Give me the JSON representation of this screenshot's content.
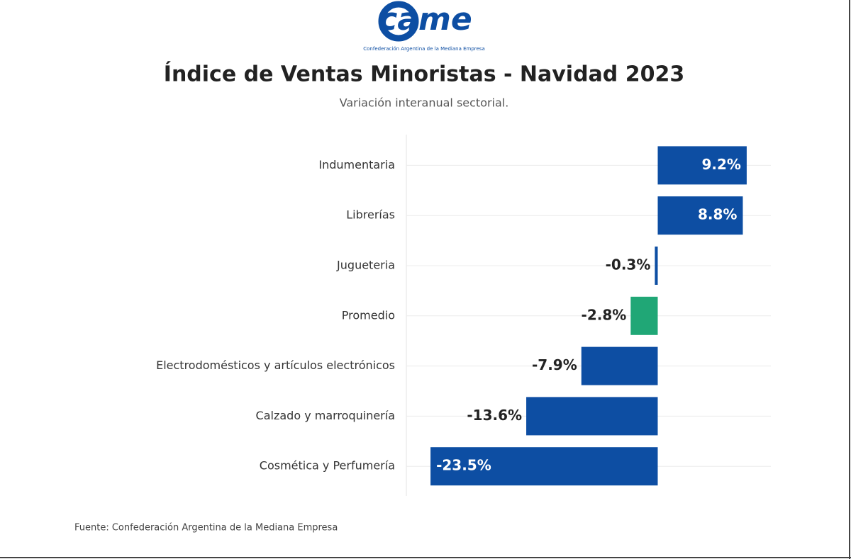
{
  "logo": {
    "text": "came",
    "caption": "Confederación Argentina de la Mediana Empresa"
  },
  "chart_data": {
    "type": "bar",
    "orientation": "horizontal",
    "title": "Índice de Ventas Minoristas - Navidad 2023",
    "subtitle": "Variación interanual sectorial.",
    "categories": [
      "Indumentaria",
      "Librerías",
      "Jugueteria",
      "Promedio",
      "Electrodomésticos y artículos electrónicos",
      "Calzado y marroquinería",
      "Cosmética y Perfumería"
    ],
    "values": [
      9.2,
      8.8,
      -0.3,
      -2.8,
      -7.9,
      -13.6,
      -23.5
    ],
    "value_labels": [
      "9.2%",
      "8.8%",
      "-0.3%",
      "-2.8%",
      "-7.9%",
      "-13.6%",
      "-23.5%"
    ],
    "colors": [
      "#0d4ea3",
      "#0d4ea3",
      "#0d4ea3",
      "#20a776",
      "#0d4ea3",
      "#0d4ea3",
      "#0d4ea3"
    ],
    "grid": true,
    "source": "Fuente: Confederación Argentina de la Mediana Empresa"
  }
}
